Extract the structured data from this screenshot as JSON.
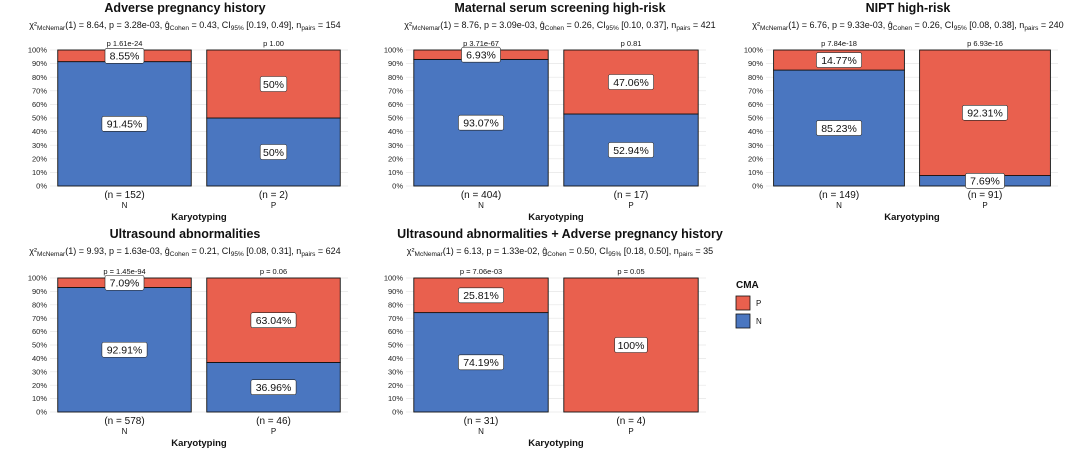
{
  "chart_data": [
    {
      "type": "bar",
      "stacked": true,
      "title": "Adverse pregnancy history",
      "subtitle": {
        "chi": "χ²",
        "chi_sub": "McNemar",
        "df": "(1) = 8.64, ",
        "p": "p = 3.28e-03, ",
        "g": "ĝ",
        "g_sub": "Cohen",
        "g_val": " = 0.43, CI",
        "ci_sub": "95%",
        "ci_val": " [0.19, 0.49], ",
        "n": "n",
        "n_sub": "pairs",
        "n_val": " = 154"
      },
      "xlabel": "Karyotyping",
      "ylabel": "",
      "ylim": [
        0,
        100
      ],
      "yticks": [
        "0%",
        "10%",
        "20%",
        "30%",
        "40%",
        "50%",
        "60%",
        "70%",
        "80%",
        "90%",
        "100%"
      ],
      "categories": [
        "N",
        "P"
      ],
      "counts": [
        "(n = 152)",
        "(n = 2)"
      ],
      "pvalues": [
        "p   1.61e-24",
        "p   1.00"
      ],
      "series": [
        {
          "name": "N",
          "values": [
            91.45,
            50
          ],
          "labels": [
            "91.45%",
            "50%"
          ]
        },
        {
          "name": "P",
          "values": [
            8.55,
            50
          ],
          "labels": [
            "8.55%",
            "50%"
          ]
        }
      ]
    },
    {
      "type": "bar",
      "stacked": true,
      "title": "Maternal serum screening high-risk",
      "subtitle": {
        "chi": "χ²",
        "chi_sub": "McNemar",
        "df": "(1) = 8.76, ",
        "p": "p = 3.09e-03, ",
        "g": "ĝ",
        "g_sub": "Cohen",
        "g_val": " = 0.26, CI",
        "ci_sub": "95%",
        "ci_val": " [0.10, 0.37], ",
        "n": "n",
        "n_sub": "pairs",
        "n_val": " = 421"
      },
      "xlabel": "Karyotyping",
      "ylabel": "",
      "ylim": [
        0,
        100
      ],
      "yticks": [
        "0%",
        "10%",
        "20%",
        "30%",
        "40%",
        "50%",
        "60%",
        "70%",
        "80%",
        "90%",
        "100%"
      ],
      "categories": [
        "N",
        "P"
      ],
      "counts": [
        "(n = 404)",
        "(n = 17)"
      ],
      "pvalues": [
        "p   3.71e-67",
        "p   0.81"
      ],
      "series": [
        {
          "name": "N",
          "values": [
            93.07,
            52.94
          ],
          "labels": [
            "93.07%",
            "52.94%"
          ]
        },
        {
          "name": "P",
          "values": [
            6.93,
            47.06
          ],
          "labels": [
            "6.93%",
            "47.06%"
          ]
        }
      ]
    },
    {
      "type": "bar",
      "stacked": true,
      "title": "NIPT high-risk",
      "subtitle": {
        "chi": "χ²",
        "chi_sub": "McNemar",
        "df": "(1) = 6.76, ",
        "p": "p = 9.33e-03, ",
        "g": "ĝ",
        "g_sub": "Cohen",
        "g_val": " = 0.26, CI",
        "ci_sub": "95%",
        "ci_val": " [0.08, 0.38], ",
        "n": "n",
        "n_sub": "pairs",
        "n_val": " = 240"
      },
      "xlabel": "Karyotyping",
      "ylabel": "",
      "ylim": [
        0,
        100
      ],
      "yticks": [
        "0%",
        "10%",
        "20%",
        "30%",
        "40%",
        "50%",
        "60%",
        "70%",
        "80%",
        "90%",
        "100%"
      ],
      "categories": [
        "N",
        "P"
      ],
      "counts": [
        "(n = 149)",
        "(n = 91)"
      ],
      "pvalues": [
        "p   7.84e-18",
        "p   6.93e-16"
      ],
      "series": [
        {
          "name": "N",
          "values": [
            85.23,
            7.69
          ],
          "labels": [
            "85.23%",
            "7.69%"
          ]
        },
        {
          "name": "P",
          "values": [
            14.77,
            92.31
          ],
          "labels": [
            "14.77%",
            "92.31%"
          ]
        }
      ]
    },
    {
      "type": "bar",
      "stacked": true,
      "title": "Ultrasound abnormalities",
      "subtitle": {
        "chi": "χ²",
        "chi_sub": "McNemar",
        "df": "(1) = 9.93, ",
        "p": "p = 1.63e-03, ",
        "g": "ĝ",
        "g_sub": "Cohen",
        "g_val": " = 0.21, CI",
        "ci_sub": "95%",
        "ci_val": " [0.08, 0.31], ",
        "n": "n",
        "n_sub": "pairs",
        "n_val": " = 624"
      },
      "xlabel": "Karyotyping",
      "ylabel": "",
      "ylim": [
        0,
        100
      ],
      "yticks": [
        "0%",
        "10%",
        "20%",
        "30%",
        "40%",
        "50%",
        "60%",
        "70%",
        "80%",
        "90%",
        "100%"
      ],
      "categories": [
        "N",
        "P"
      ],
      "counts": [
        "(n = 578)",
        "(n = 46)"
      ],
      "pvalues": [
        "p = 1.45e-94",
        "p = 0.06"
      ],
      "series": [
        {
          "name": "N",
          "values": [
            92.91,
            36.96
          ],
          "labels": [
            "92.91%",
            "36.96%"
          ]
        },
        {
          "name": "P",
          "values": [
            7.09,
            63.04
          ],
          "labels": [
            "7.09%",
            "63.04%"
          ]
        }
      ]
    },
    {
      "type": "bar",
      "stacked": true,
      "title": "Ultrasound abnormalities + Adverse pregnancy history",
      "subtitle": {
        "chi": "χ²",
        "chi_sub": "McNemar",
        "df": "(1) = 6.13, ",
        "p": "p = 1.33e-02, ",
        "g": "ĝ",
        "g_sub": "Cohen",
        "g_val": " = 0.50, CI",
        "ci_sub": "95%",
        "ci_val": " [0.18, 0.50], ",
        "n": "n",
        "n_sub": "pairs",
        "n_val": " = 35"
      },
      "xlabel": "Karyotyping",
      "ylabel": "",
      "ylim": [
        0,
        100
      ],
      "yticks": [
        "0%",
        "10%",
        "20%",
        "30%",
        "40%",
        "50%",
        "60%",
        "70%",
        "80%",
        "90%",
        "100%"
      ],
      "categories": [
        "N",
        "P"
      ],
      "counts": [
        "(n = 31)",
        "(n = 4)"
      ],
      "pvalues": [
        "p = 7.06e-03",
        "p = 0.05"
      ],
      "series": [
        {
          "name": "N",
          "values": [
            74.19,
            0
          ],
          "labels": [
            "74.19%",
            ""
          ]
        },
        {
          "name": "P",
          "values": [
            25.81,
            100
          ],
          "labels": [
            "25.81%",
            "100%"
          ]
        }
      ]
    }
  ],
  "legend": {
    "title": "CMA",
    "position": "right",
    "items": [
      {
        "label": "P",
        "color": "#E9604E"
      },
      {
        "label": "N",
        "color": "#4A76C0"
      }
    ]
  },
  "colors": {
    "N": "#4A76C0",
    "P": "#E9604E",
    "grid": "#e6e6e6"
  }
}
